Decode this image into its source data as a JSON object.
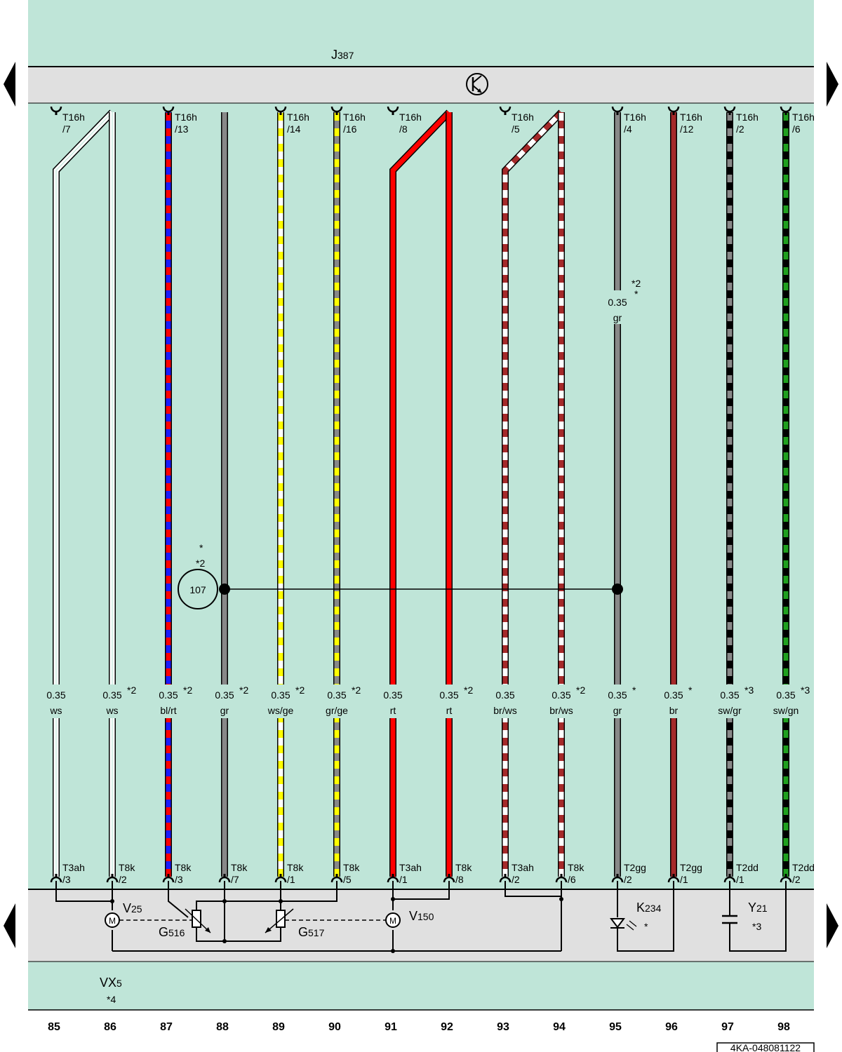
{
  "colors": {
    "background": "#bfe5d8",
    "band": "#e0e0e0",
    "ws": "#ffffff",
    "rt": "#ff0000",
    "bl": "#1a1aff",
    "ge": "#ffff00",
    "gr": "#888888",
    "br": "#a52a2a",
    "sw": "#000000",
    "gn": "#1fa01f"
  },
  "control_unit": {
    "label_main": "J",
    "label_sub": "387",
    "icon": "transistor-icon",
    "arrow_left_icon": "triangle-left-icon",
    "arrow_right_icon": "triangle-right-icon"
  },
  "wires": [
    {
      "col": "85",
      "top_conn": "T16h",
      "top_pin": "/7",
      "bot_conn": "T3ah",
      "bot_pin": "/3",
      "size": "0.35",
      "color": "ws",
      "note": "",
      "stripes": [
        "ws"
      ]
    },
    {
      "col": "86",
      "top_conn": "",
      "top_pin": "",
      "bot_conn": "T8k",
      "bot_pin": "/2",
      "size": "0.35",
      "color": "ws",
      "note": "*2",
      "stripes": [
        "ws"
      ]
    },
    {
      "col": "87",
      "top_conn": "T16h",
      "top_pin": "/13",
      "bot_conn": "T8k",
      "bot_pin": "/3",
      "size": "0.35",
      "color": "bl/rt",
      "note": "*2",
      "stripes": [
        "bl",
        "rt"
      ]
    },
    {
      "col": "88",
      "top_conn": "",
      "top_pin": "",
      "bot_conn": "T8k",
      "bot_pin": "/7",
      "size": "0.35",
      "color": "gr",
      "note": "*2",
      "stripes": [
        "gr"
      ]
    },
    {
      "col": "89",
      "top_conn": "T16h",
      "top_pin": "/14",
      "bot_conn": "T8k",
      "bot_pin": "/1",
      "size": "0.35",
      "color": "ws/ge",
      "note": "*2",
      "stripes": [
        "ws",
        "ge"
      ]
    },
    {
      "col": "90",
      "top_conn": "T16h",
      "top_pin": "/16",
      "bot_conn": "T8k",
      "bot_pin": "/5",
      "size": "0.35",
      "color": "gr/ge",
      "note": "*2",
      "stripes": [
        "gr",
        "ge"
      ]
    },
    {
      "col": "91",
      "top_conn": "T16h",
      "top_pin": "/8",
      "bot_conn": "T3ah",
      "bot_pin": "/1",
      "size": "0.35",
      "color": "rt",
      "note": "",
      "stripes": [
        "rt"
      ]
    },
    {
      "col": "92",
      "top_conn": "",
      "top_pin": "",
      "bot_conn": "T8k",
      "bot_pin": "/8",
      "size": "0.35",
      "color": "rt",
      "note": "*2",
      "stripes": [
        "rt"
      ]
    },
    {
      "col": "93",
      "top_conn": "T16h",
      "top_pin": "/5",
      "bot_conn": "T3ah",
      "bot_pin": "/2",
      "size": "0.35",
      "color": "br/ws",
      "note": "",
      "stripes": [
        "br",
        "ws"
      ]
    },
    {
      "col": "94",
      "top_conn": "",
      "top_pin": "",
      "bot_conn": "T8k",
      "bot_pin": "/6",
      "size": "0.35",
      "color": "br/ws",
      "note": "*2",
      "stripes": [
        "br",
        "ws"
      ]
    },
    {
      "col": "95",
      "top_conn": "T16h",
      "top_pin": "/4",
      "bot_conn": "T2gg",
      "bot_pin": "/2",
      "size": "0.35",
      "color": "gr",
      "note": "*",
      "stripes": [
        "gr"
      ]
    },
    {
      "col": "96",
      "top_conn": "T16h",
      "top_pin": "/12",
      "bot_conn": "T2gg",
      "bot_pin": "/1",
      "size": "0.35",
      "color": "br",
      "note": "*",
      "stripes": [
        "br"
      ]
    },
    {
      "col": "97",
      "top_conn": "T16h",
      "top_pin": "/2",
      "bot_conn": "T2dd",
      "bot_pin": "/1",
      "size": "0.35",
      "color": "sw/gr",
      "note": "*3",
      "stripes": [
        "sw",
        "gr"
      ]
    },
    {
      "col": "98",
      "top_conn": "T16h",
      "top_pin": "/6",
      "bot_conn": "T2dd",
      "bot_pin": "/2",
      "size": "0.35",
      "color": "sw/gn",
      "note": "*3",
      "stripes": [
        "sw",
        "gn"
      ]
    }
  ],
  "mid_label_95": {
    "size": "0.35",
    "color": "gr",
    "note1": "*2",
    "note2": "*"
  },
  "splice": {
    "number": "107",
    "note1": "*",
    "note2": "*2"
  },
  "components": {
    "V25": {
      "main": "V",
      "sub": "25",
      "icon": "motor-icon",
      "glyph": "M"
    },
    "G516": {
      "main": "G",
      "sub": "516",
      "icon": "potentiometer-icon"
    },
    "G517": {
      "main": "G",
      "sub": "517",
      "icon": "potentiometer-icon"
    },
    "V150": {
      "main": "V",
      "sub": "150",
      "icon": "motor-icon",
      "glyph": "M"
    },
    "K234": {
      "main": "K",
      "sub": "234",
      "note": "*",
      "icon": "led-icon"
    },
    "Y21": {
      "main": "Y",
      "sub": "21",
      "note": "*3",
      "icon": "capacitor-icon"
    },
    "VX5": {
      "main": "VX",
      "sub": "5",
      "note": "*4"
    }
  },
  "document_id": "4KA-048081122"
}
